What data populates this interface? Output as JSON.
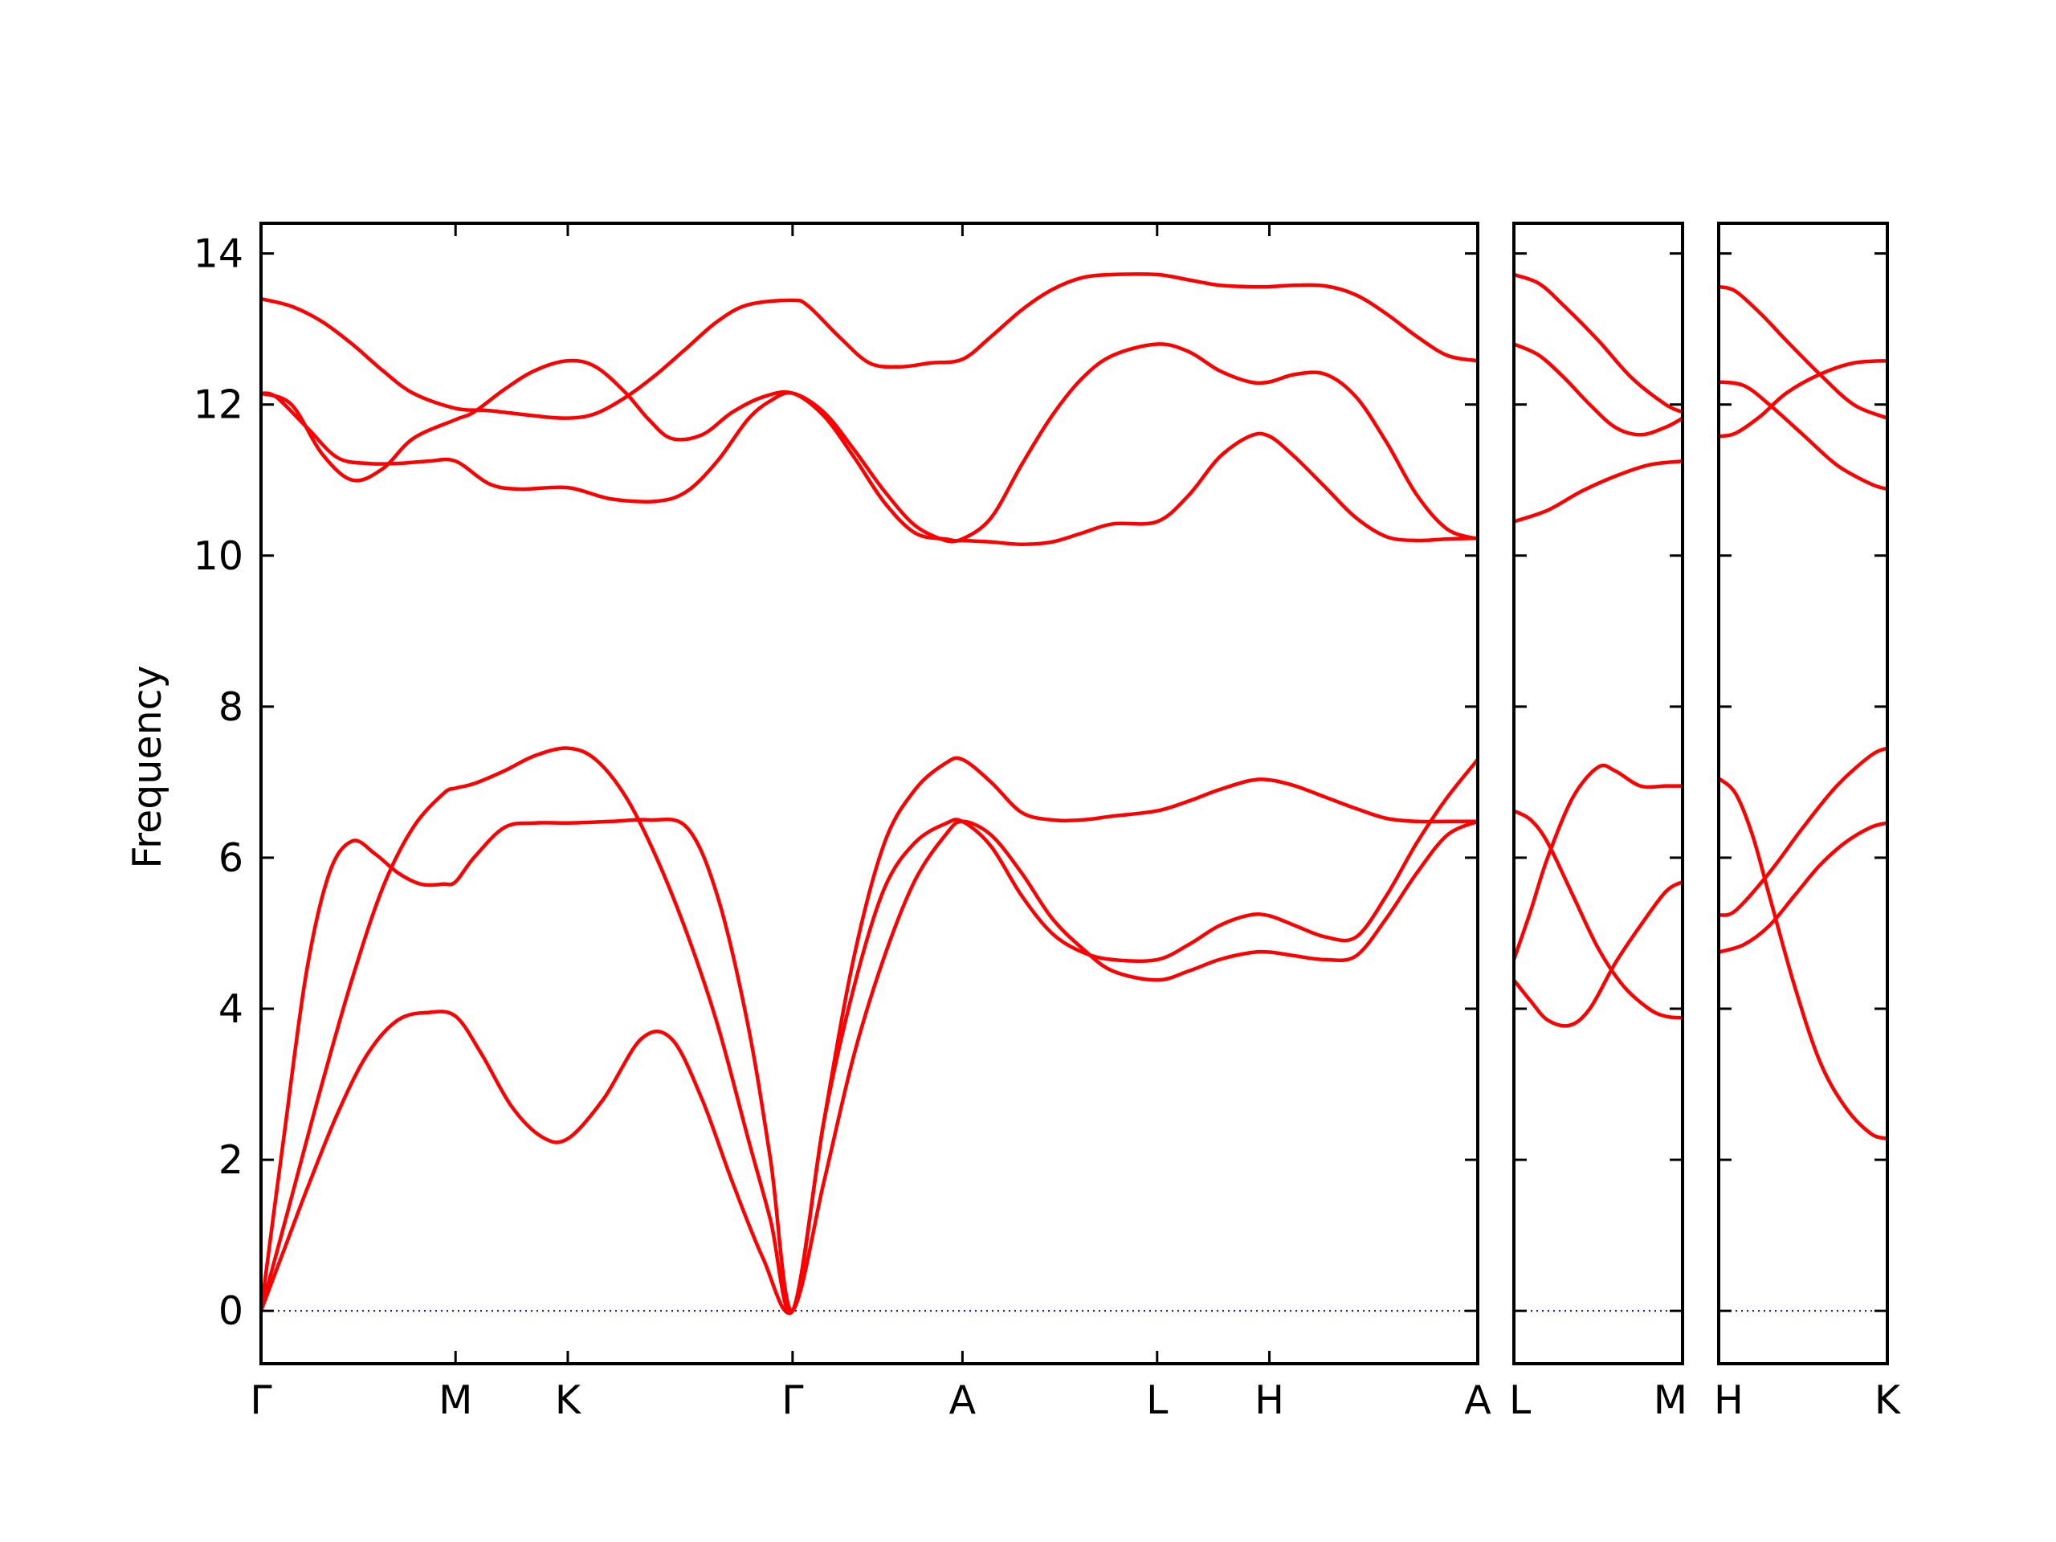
{
  "chart_data": {
    "type": "line",
    "ylabel": "Frequency",
    "ylim": [
      -0.7,
      14.4
    ],
    "yticks": [
      0,
      2,
      4,
      6,
      8,
      10,
      12,
      14
    ],
    "colors": {
      "band": "#ff0000",
      "zero_line": "#0000cc"
    },
    "panels": [
      {
        "x_labels": [
          "Γ",
          "M",
          "K",
          "Γ",
          "A",
          "L",
          "H",
          "A"
        ],
        "xlim": [
          0,
          8
        ],
        "label_x": [
          0,
          1.279,
          2.017,
          3.495,
          4.612,
          5.892,
          6.63,
          8.0
        ],
        "series": [
          {
            "x": [
              0,
              0.15,
              0.3,
              0.5,
              0.7,
              0.9,
              1.1,
              1.279,
              1.45,
              1.65,
              1.85,
              2.017,
              2.25,
              2.5,
              2.7,
              2.9,
              3.1,
              3.3,
              3.495,
              3.7,
              3.9,
              4.1,
              4.3,
              4.5,
              4.612,
              4.8,
              5.0,
              5.2,
              5.4,
              5.6,
              5.892,
              6.1,
              6.3,
              6.5,
              6.63,
              6.8,
              7.0,
              7.2,
              7.4,
              7.6,
              7.8,
              8.0
            ],
            "y": [
              0,
              0.8,
              1.6,
              2.6,
              3.4,
              3.85,
              3.95,
              3.9,
              3.4,
              2.7,
              2.3,
              2.28,
              2.8,
              3.6,
              3.6,
              2.8,
              1.7,
              0.7,
              0,
              1.7,
              3.4,
              4.7,
              5.7,
              6.3,
              6.48,
              6.3,
              5.8,
              5.2,
              4.8,
              4.5,
              4.38,
              4.5,
              4.65,
              4.74,
              4.75,
              4.7,
              4.65,
              4.7,
              5.2,
              5.8,
              6.3,
              6.48
            ]
          },
          {
            "x": [
              0,
              0.15,
              0.3,
              0.45,
              0.6,
              0.75,
              0.9,
              1.05,
              1.2,
              1.279,
              1.4,
              1.6,
              1.8,
              2.017,
              2.3,
              2.55,
              2.8,
              3.0,
              3.2,
              3.35,
              3.495,
              3.7,
              3.9,
              4.1,
              4.3,
              4.5,
              4.612,
              4.8,
              5.0,
              5.2,
              5.4,
              5.6,
              5.892,
              6.1,
              6.3,
              6.5,
              6.63,
              6.8,
              7.0,
              7.2,
              7.4,
              7.6,
              7.8,
              8.0
            ],
            "y": [
              0,
              2.3,
              4.5,
              5.8,
              6.22,
              6.05,
              5.8,
              5.65,
              5.65,
              5.68,
              6.0,
              6.4,
              6.46,
              6.46,
              6.48,
              6.5,
              6.4,
              5.5,
              3.8,
              2.0,
              0,
              2.5,
              4.3,
              5.6,
              6.2,
              6.45,
              6.48,
              6.15,
              5.5,
              5.0,
              4.75,
              4.65,
              4.65,
              4.85,
              5.1,
              5.24,
              5.23,
              5.1,
              4.95,
              4.95,
              5.5,
              6.2,
              6.8,
              7.3
            ]
          },
          {
            "x": [
              0,
              0.2,
              0.4,
              0.6,
              0.8,
              1.0,
              1.2,
              1.279,
              1.4,
              1.6,
              1.8,
              2.017,
              2.2,
              2.4,
              2.6,
              2.8,
              3.0,
              3.2,
              3.35,
              3.495,
              3.7,
              3.9,
              4.1,
              4.3,
              4.5,
              4.612,
              4.8,
              5.0,
              5.2,
              5.4,
              5.6,
              5.892,
              6.1,
              6.3,
              6.5,
              6.63,
              6.8,
              7.0,
              7.2,
              7.4,
              7.6,
              7.8,
              8.0
            ],
            "y": [
              0,
              1.5,
              3.0,
              4.4,
              5.6,
              6.4,
              6.85,
              6.92,
              6.98,
              7.15,
              7.35,
              7.45,
              7.3,
              6.8,
              6.0,
              5.0,
              3.8,
              2.3,
              1.2,
              0,
              2.5,
              4.7,
              6.2,
              6.9,
              7.25,
              7.3,
              7.0,
              6.6,
              6.5,
              6.5,
              6.55,
              6.62,
              6.75,
              6.9,
              7.02,
              7.03,
              6.95,
              6.8,
              6.65,
              6.52,
              6.48,
              6.48,
              6.48
            ]
          },
          {
            "x": [
              0,
              0.1,
              0.3,
              0.5,
              0.7,
              0.9,
              1.1,
              1.279,
              1.5,
              1.7,
              2.017,
              2.3,
              2.6,
              2.8,
              3.0,
              3.2,
              3.35,
              3.495,
              3.7,
              3.9,
              4.1,
              4.3,
              4.5,
              4.612,
              4.8,
              5.0,
              5.2,
              5.4,
              5.6,
              5.892,
              6.1,
              6.3,
              6.5,
              6.63,
              6.8,
              7.0,
              7.2,
              7.4,
              7.6,
              7.8,
              8.0
            ],
            "y": [
              12.15,
              12.1,
              11.7,
              11.3,
              11.22,
              11.22,
              11.25,
              11.25,
              10.95,
              10.88,
              10.9,
              10.75,
              10.72,
              10.85,
              11.25,
              11.8,
              12.05,
              12.15,
              11.9,
              11.4,
              10.85,
              10.4,
              10.2,
              10.2,
              10.18,
              10.15,
              10.18,
              10.3,
              10.42,
              10.45,
              10.8,
              11.3,
              11.58,
              11.58,
              11.3,
              10.9,
              10.5,
              10.25,
              10.2,
              10.22,
              10.23
            ]
          },
          {
            "x": [
              0,
              0.2,
              0.4,
              0.6,
              0.8,
              1.0,
              1.279,
              1.4,
              1.6,
              1.8,
              2.017,
              2.2,
              2.4,
              2.55,
              2.7,
              2.9,
              3.1,
              3.3,
              3.495,
              3.7,
              3.9,
              4.1,
              4.3,
              4.5,
              4.612,
              4.8,
              5.0,
              5.2,
              5.4,
              5.6,
              5.892,
              6.1,
              6.3,
              6.5,
              6.63,
              6.8,
              7.0,
              7.2,
              7.4,
              7.6,
              7.8,
              8.0
            ],
            "y": [
              12.15,
              12.0,
              11.35,
              11.0,
              11.15,
              11.55,
              11.8,
              11.9,
              12.2,
              12.45,
              12.58,
              12.5,
              12.15,
              11.8,
              11.55,
              11.6,
              11.9,
              12.1,
              12.15,
              11.85,
              11.3,
              10.7,
              10.3,
              10.22,
              10.22,
              10.5,
              11.2,
              11.85,
              12.35,
              12.65,
              12.8,
              12.7,
              12.45,
              12.3,
              12.3,
              12.4,
              12.4,
              12.1,
              11.5,
              10.8,
              10.35,
              10.22
            ]
          },
          {
            "x": [
              0,
              0.2,
              0.4,
              0.6,
              0.8,
              1.0,
              1.279,
              1.5,
              1.8,
              2.017,
              2.2,
              2.4,
              2.6,
              2.8,
              3.0,
              3.2,
              3.495,
              3.6,
              3.8,
              4.0,
              4.2,
              4.4,
              4.612,
              4.8,
              5.0,
              5.2,
              5.4,
              5.6,
              5.892,
              6.1,
              6.3,
              6.5,
              6.63,
              6.8,
              7.0,
              7.2,
              7.4,
              7.6,
              7.8,
              8.0
            ],
            "y": [
              13.4,
              13.3,
              13.1,
              12.8,
              12.45,
              12.15,
              11.95,
              11.92,
              11.85,
              11.82,
              11.88,
              12.1,
              12.4,
              12.75,
              13.1,
              13.32,
              13.38,
              13.3,
              12.9,
              12.55,
              12.5,
              12.55,
              12.6,
              12.9,
              13.25,
              13.52,
              13.68,
              13.72,
              13.72,
              13.65,
              13.58,
              13.56,
              13.56,
              13.58,
              13.57,
              13.45,
              13.2,
              12.9,
              12.65,
              12.58
            ]
          }
        ]
      },
      {
        "x_labels": [
          "L",
          "M"
        ],
        "xlim": [
          0,
          1
        ],
        "label_x": [
          0,
          1
        ],
        "series": [
          {
            "x": [
              0,
              0.1,
              0.2,
              0.33,
              0.45,
              0.6,
              0.75,
              0.9,
              1.0
            ],
            "y": [
              4.38,
              4.1,
              3.85,
              3.78,
              4.0,
              4.6,
              5.1,
              5.55,
              5.68
            ]
          },
          {
            "x": [
              0,
              0.1,
              0.2,
              0.35,
              0.5,
              0.6,
              0.75,
              0.9,
              1.0
            ],
            "y": [
              4.65,
              5.3,
              6.0,
              6.8,
              7.2,
              7.15,
              6.95,
              6.95,
              6.95
            ]
          },
          {
            "x": [
              0,
              0.1,
              0.2,
              0.35,
              0.5,
              0.65,
              0.8,
              0.9,
              1.0
            ],
            "y": [
              6.62,
              6.5,
              6.2,
              5.5,
              4.8,
              4.3,
              4.0,
              3.9,
              3.88
            ]
          },
          {
            "x": [
              0,
              0.2,
              0.4,
              0.6,
              0.8,
              1.0
            ],
            "y": [
              10.45,
              10.6,
              10.85,
              11.05,
              11.2,
              11.25
            ]
          },
          {
            "x": [
              0,
              0.15,
              0.3,
              0.45,
              0.6,
              0.75,
              0.9,
              1.0
            ],
            "y": [
              12.8,
              12.65,
              12.35,
              12.0,
              11.7,
              11.6,
              11.7,
              11.82
            ]
          },
          {
            "x": [
              0,
              0.15,
              0.3,
              0.5,
              0.7,
              0.9,
              1.0
            ],
            "y": [
              13.72,
              13.6,
              13.3,
              12.85,
              12.35,
              12.0,
              11.9
            ]
          }
        ]
      },
      {
        "x_labels": [
          "H",
          "K"
        ],
        "xlim": [
          0,
          1
        ],
        "label_x": [
          0,
          1
        ],
        "series": [
          {
            "x": [
              0,
              0.1,
              0.2,
              0.3,
              0.45,
              0.6,
              0.75,
              0.9,
              1.0
            ],
            "y": [
              7.05,
              6.85,
              6.3,
              5.5,
              4.3,
              3.3,
              2.7,
              2.35,
              2.28
            ]
          },
          {
            "x": [
              0,
              0.15,
              0.3,
              0.45,
              0.6,
              0.75,
              0.9,
              1.0
            ],
            "y": [
              4.75,
              4.85,
              5.1,
              5.5,
              5.9,
              6.2,
              6.4,
              6.46
            ]
          },
          {
            "x": [
              0,
              0.1,
              0.3,
              0.5,
              0.7,
              0.9,
              1.0
            ],
            "y": [
              5.24,
              5.3,
              5.8,
              6.4,
              6.95,
              7.35,
              7.45
            ]
          },
          {
            "x": [
              0,
              0.1,
              0.25,
              0.4,
              0.6,
              0.8,
              1.0
            ],
            "y": [
              11.58,
              11.62,
              11.85,
              12.15,
              12.4,
              12.55,
              12.58
            ]
          },
          {
            "x": [
              0,
              0.15,
              0.3,
              0.5,
              0.7,
              0.9,
              1.0
            ],
            "y": [
              12.3,
              12.25,
              12.0,
              11.6,
              11.2,
              10.95,
              10.88
            ]
          },
          {
            "x": [
              0,
              0.1,
              0.25,
              0.4,
              0.6,
              0.8,
              1.0
            ],
            "y": [
              13.56,
              13.5,
              13.2,
              12.85,
              12.4,
              12.0,
              11.82
            ]
          }
        ]
      }
    ]
  }
}
